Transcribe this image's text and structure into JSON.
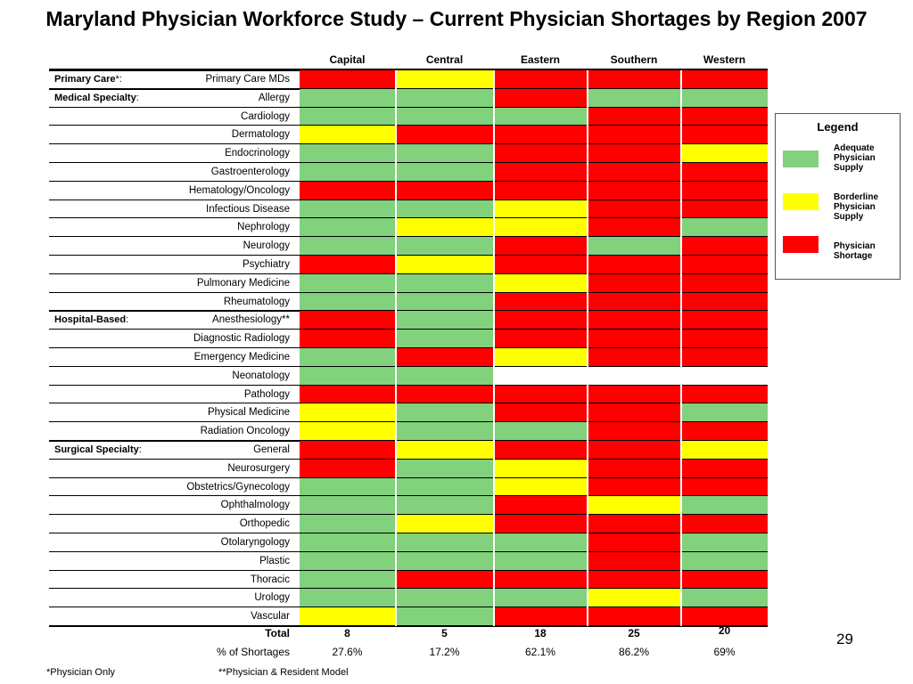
{
  "title": "Maryland Physician Workforce Study – Current Physician Shortages by Region 2007",
  "regions": [
    "Capital",
    "Central",
    "Eastern",
    "Southern",
    "Western"
  ],
  "groups": [
    {
      "label": "Primary Care",
      "suffix": "*:"
    },
    {
      "label": "Medical Specialty",
      "suffix": ":"
    },
    {
      "label": "Hospital-Based",
      "suffix": ":"
    },
    {
      "label": "Surgical Specialty",
      "suffix": ":"
    }
  ],
  "rows": [
    {
      "label": "Primary Care MDs",
      "group": 0,
      "status": [
        "S",
        "B",
        "S",
        "S",
        "S"
      ]
    },
    {
      "label": "Allergy",
      "group": 1,
      "status": [
        "A",
        "A",
        "S",
        "A",
        "A"
      ]
    },
    {
      "label": "Cardiology",
      "status": [
        "A",
        "A",
        "A",
        "S",
        "S"
      ]
    },
    {
      "label": "Dermatology",
      "status": [
        "B",
        "S",
        "S",
        "S",
        "S"
      ]
    },
    {
      "label": "Endocrinology",
      "status": [
        "A",
        "A",
        "S",
        "S",
        "B"
      ]
    },
    {
      "label": "Gastroenterology",
      "status": [
        "A",
        "A",
        "S",
        "S",
        "S"
      ]
    },
    {
      "label": "Hematology/Oncology",
      "status": [
        "S",
        "S",
        "S",
        "S",
        "S"
      ]
    },
    {
      "label": "Infectious Disease",
      "status": [
        "A",
        "A",
        "B",
        "S",
        "S"
      ]
    },
    {
      "label": "Nephrology",
      "status": [
        "A",
        "B",
        "B",
        "S",
        "A"
      ]
    },
    {
      "label": "Neurology",
      "status": [
        "A",
        "A",
        "S",
        "A",
        "S"
      ]
    },
    {
      "label": "Psychiatry",
      "status": [
        "S",
        "B",
        "S",
        "S",
        "S"
      ]
    },
    {
      "label": "Pulmonary Medicine",
      "status": [
        "A",
        "A",
        "B",
        "S",
        "S"
      ]
    },
    {
      "label": "Rheumatology",
      "status": [
        "A",
        "A",
        "S",
        "S",
        "S"
      ]
    },
    {
      "label": "Anesthesiology**",
      "group": 2,
      "status": [
        "S",
        "A",
        "S",
        "S",
        "S"
      ]
    },
    {
      "label": "Diagnostic Radiology",
      "status": [
        "S",
        "A",
        "S",
        "S",
        "S"
      ]
    },
    {
      "label": "Emergency Medicine",
      "status": [
        "A",
        "S",
        "B",
        "S",
        "S"
      ]
    },
    {
      "label": "Neonatology",
      "status": [
        "A",
        "A",
        "N",
        "N",
        "N"
      ]
    },
    {
      "label": "Pathology",
      "status": [
        "S",
        "S",
        "S",
        "S",
        "S"
      ]
    },
    {
      "label": "Physical Medicine",
      "status": [
        "B",
        "A",
        "S",
        "S",
        "A"
      ]
    },
    {
      "label": "Radiation Oncology",
      "status": [
        "B",
        "A",
        "A",
        "S",
        "S"
      ]
    },
    {
      "label": "General",
      "group": 3,
      "status": [
        "S",
        "B",
        "S",
        "S",
        "B"
      ]
    },
    {
      "label": "Neurosurgery",
      "status": [
        "S",
        "A",
        "B",
        "S",
        "S"
      ]
    },
    {
      "label": "Obstetrics/Gynecology",
      "status": [
        "A",
        "A",
        "B",
        "S",
        "S"
      ]
    },
    {
      "label": "Ophthalmology",
      "status": [
        "A",
        "A",
        "S",
        "B",
        "A"
      ]
    },
    {
      "label": "Orthopedic",
      "status": [
        "A",
        "B",
        "S",
        "S",
        "S"
      ]
    },
    {
      "label": "Otolaryngology",
      "status": [
        "A",
        "A",
        "A",
        "S",
        "A"
      ]
    },
    {
      "label": "Plastic",
      "status": [
        "A",
        "A",
        "A",
        "S",
        "A"
      ]
    },
    {
      "label": "Thoracic",
      "status": [
        "A",
        "S",
        "S",
        "S",
        "S"
      ]
    },
    {
      "label": "Urology",
      "status": [
        "A",
        "A",
        "A",
        "B",
        "A"
      ]
    },
    {
      "label": "Vascular",
      "status": [
        "B",
        "A",
        "S",
        "S",
        "S"
      ]
    }
  ],
  "totals": {
    "total_label": "Total",
    "total_values": [
      "8",
      "5",
      "18",
      "25",
      "20"
    ],
    "percent_label": "% of Shortages",
    "percent_values": [
      "27.6%",
      "17.2%",
      "62.1%",
      "86.2%",
      "69%"
    ]
  },
  "legend": {
    "title": "Legend",
    "items": [
      {
        "code": "A",
        "label": "Adequate Physician Supply"
      },
      {
        "code": "B",
        "label": "Borderline Physician Supply"
      },
      {
        "code": "S",
        "label": "Physician Shortage"
      }
    ]
  },
  "colors": {
    "A": "#82d17c",
    "B": "#ffff00",
    "S": "#ff0000"
  },
  "page_number": "29",
  "footnotes": [
    "*Physician Only",
    "**Physician & Resident Model"
  ]
}
